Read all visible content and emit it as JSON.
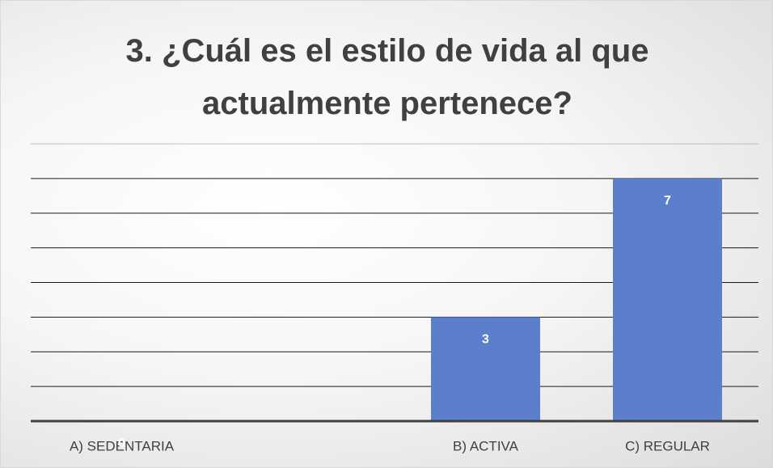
{
  "chart_data": {
    "type": "bar",
    "title": "3. ¿Cuál es el estilo de vida al que actualmente pertenece?",
    "categories": [
      "A) SEDENTARIA",
      null,
      "B) ACTIVA",
      "C) REGULAR"
    ],
    "values": [
      0,
      null,
      3,
      7
    ],
    "color": "#5b7fcb",
    "ylim": [
      0,
      8
    ],
    "yticks": [
      0,
      1,
      2,
      3,
      4,
      5,
      6,
      7,
      8
    ],
    "grid": true
  }
}
